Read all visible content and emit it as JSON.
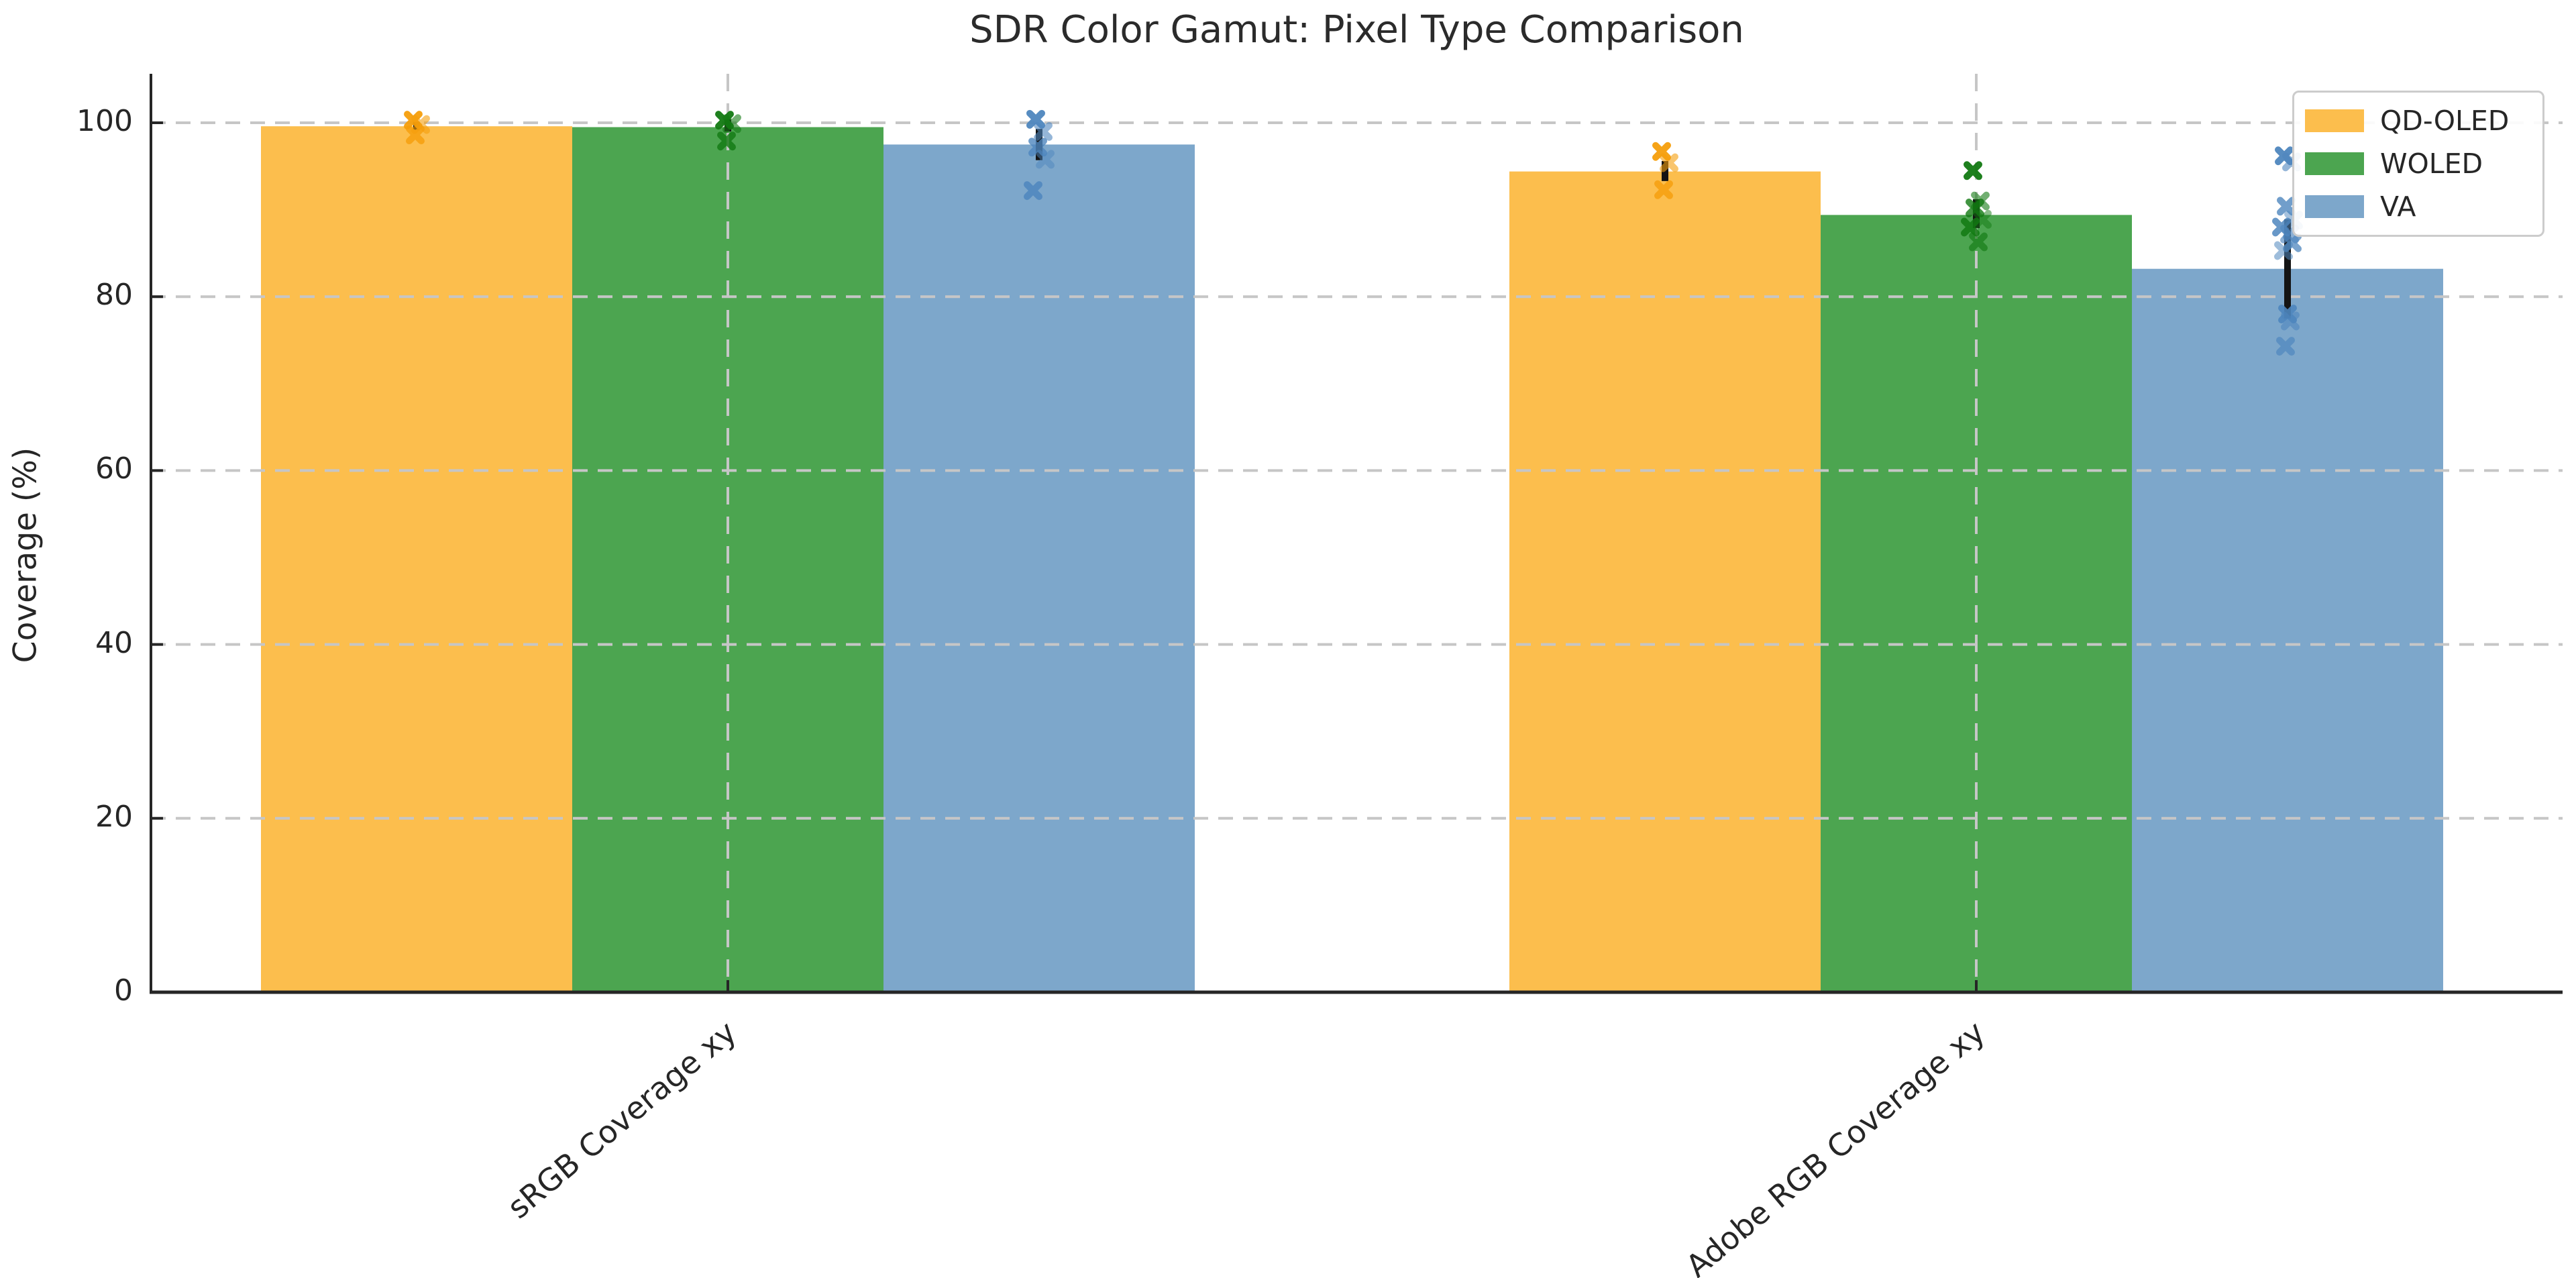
{
  "chart_data": {
    "type": "bar",
    "title": "SDR Color Gamut: Pixel Type Comparison",
    "ylabel": "Coverage (%)",
    "xlabel": "",
    "categories": [
      "sRGB Coverage xy",
      "Adobe RGB Coverage xy"
    ],
    "y_ticks": [
      0,
      20,
      40,
      60,
      80,
      100
    ],
    "y_tick_labels": [
      "0",
      "20",
      "40",
      "60",
      "80",
      "100"
    ],
    "ylim": [
      0,
      105.6
    ],
    "grid": "dashed, light gray, horizontal at 20/40/60/80/100 and vertical at category centers, drawn over bars",
    "legend_position": "upper right",
    "marker_style": "x",
    "error_bar_color": "#141414",
    "grid_color": "#c6c6c6",
    "axis_color": "#262626",
    "series": [
      {
        "name": "QD-OLED",
        "color": "#FCBE4D",
        "marker_color": "#F59E0B",
        "values": [
          99.6,
          94.4
        ],
        "error_low": [
          99.2,
          93.3
        ],
        "error_high": [
          100.1,
          95.6
        ],
        "points": [
          [
            100.3,
            99.8,
            98.6
          ],
          [
            96.7,
            95.4,
            92.3
          ]
        ]
      },
      {
        "name": "WOLED",
        "color": "#4CA550",
        "marker_color": "#127912",
        "values": [
          99.5,
          89.4
        ],
        "error_low": [
          99.0,
          87.9
        ],
        "error_high": [
          100.4,
          91.2
        ],
        "points": [
          [
            100.3,
            99.9,
            97.9
          ],
          [
            94.5,
            91.0,
            90.2,
            88.9,
            88.0,
            86.3
          ]
        ]
      },
      {
        "name": "VA",
        "color": "#7DA7CB",
        "marker_color": "#4E86BE",
        "values": [
          97.5,
          83.2
        ],
        "error_low": [
          95.7,
          77.5
        ],
        "error_high": [
          99.3,
          88.9
        ],
        "points": [
          [
            100.4,
            99.0,
            97.2,
            95.8,
            92.2
          ],
          [
            96.2,
            95.5,
            90.4,
            88.8,
            88.0,
            87.2,
            86.2,
            85.3,
            78.0,
            77.2,
            74.3
          ]
        ]
      }
    ]
  }
}
